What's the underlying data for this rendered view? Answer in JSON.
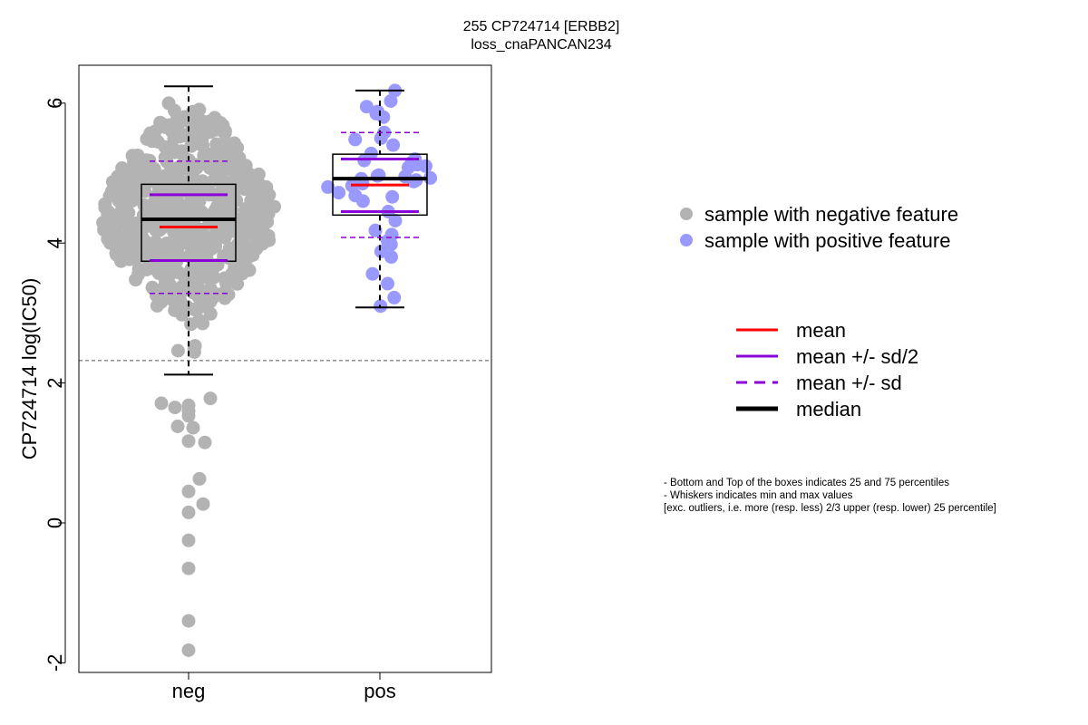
{
  "chart_data": {
    "type": "box_swarm",
    "title": "255 CP724714 [ERBB2]",
    "subtitle": "loss_cnaPANCAN234",
    "ylabel": "CP724714 log(IC50)",
    "xlabel": "",
    "categories": [
      "neg",
      "pos"
    ],
    "ylim": [
      -2.2,
      6.5
    ],
    "yticks": [
      -2,
      0,
      2,
      4,
      6
    ],
    "grid": false,
    "threshold_line": 2.32,
    "groups": [
      {
        "category": "neg",
        "color": "#b3b3b3",
        "q1": 3.74,
        "median": 4.34,
        "q3": 4.84,
        "whisker_low": 2.12,
        "whisker_high": 6.24,
        "mean": 4.23,
        "mean_minus_half_sd": 3.75,
        "mean_plus_half_sd": 4.69,
        "mean_minus_sd": 3.28,
        "mean_plus_sd": 5.17,
        "outliers": [
          1.78,
          1.71,
          1.68,
          1.65,
          1.6,
          1.53,
          1.38,
          1.36,
          1.17,
          1.15,
          0.63,
          0.45,
          0.27,
          0.15,
          -0.25,
          -0.65,
          -1.4,
          -1.82
        ]
      },
      {
        "category": "pos",
        "color": "#9999ff",
        "q1": 4.4,
        "median": 4.92,
        "q3": 5.27,
        "whisker_low": 3.08,
        "whisker_high": 6.18,
        "mean": 4.83,
        "mean_minus_half_sd": 4.45,
        "mean_plus_half_sd": 5.2,
        "mean_minus_sd": 4.08,
        "mean_plus_sd": 5.58,
        "points": [
          6.18,
          6.03,
          5.95,
          5.88,
          5.85,
          5.8,
          5.58,
          5.5,
          5.48,
          5.4,
          5.28,
          5.2,
          5.18,
          5.15,
          5.12,
          5.1,
          5.08,
          4.97,
          4.96,
          4.95,
          4.93,
          4.92,
          4.9,
          4.88,
          4.85,
          4.82,
          4.8,
          4.72,
          4.68,
          4.66,
          4.6,
          4.45,
          4.32,
          4.18,
          4.12,
          4.03,
          3.98,
          3.88,
          3.8,
          3.56,
          3.42,
          3.22,
          3.1
        ]
      }
    ],
    "legend_points": [
      {
        "label": "sample with negative feature",
        "color": "#b3b3b3"
      },
      {
        "label": "sample with positive feature",
        "color": "#9999ff"
      }
    ],
    "legend_lines": [
      {
        "label": "mean",
        "color": "#ff0000",
        "style": "solid"
      },
      {
        "label": "mean +/- sd/2",
        "color": "#8b00d9",
        "style": "solid"
      },
      {
        "label": "mean +/- sd",
        "color": "#8b00d9",
        "style": "dashed"
      },
      {
        "label": "median",
        "color": "#000000",
        "style": "solid-thick"
      }
    ],
    "notes": [
      "- Bottom and Top of the boxes indicates 25 and 75 percentiles",
      "- Whiskers indicates min and max values",
      "[exc. outliers, i.e. more (resp. less) 2/3 upper (resp. lower) 25 percentile]"
    ]
  }
}
